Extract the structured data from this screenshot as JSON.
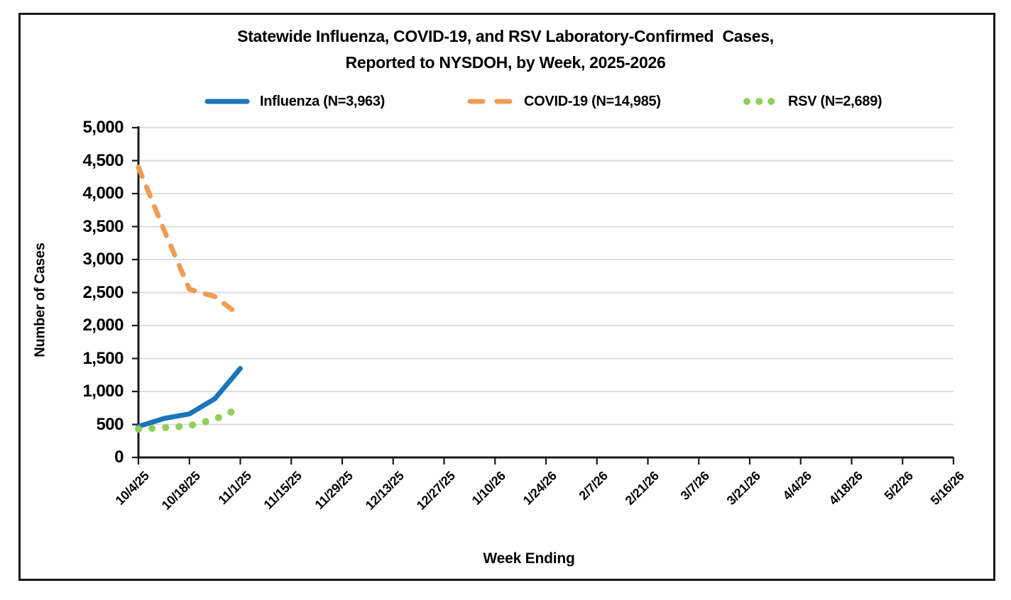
{
  "title": {
    "line1": "Statewide Influenza, COVID-19, and RSV Laboratory-Confirmed  Cases,",
    "line2": "Reported to NYSDOH, by Week, 2025-2026"
  },
  "legend": {
    "items": [
      {
        "label": "Influenza (N=3,963)",
        "series": "Influenza"
      },
      {
        "label": "COVID-19 (N=14,985)",
        "series": "COVID-19"
      },
      {
        "label": "RSV (N=2,689)",
        "series": "RSV"
      }
    ]
  },
  "colors": {
    "influenza_blue": "#1B75BB",
    "covid_orange": "#F09C52",
    "rsv_green": "#8FD05A",
    "gridline_gray": "#D9D9D9",
    "axis_black": "#1a1a1a"
  },
  "chart_data": {
    "type": "line",
    "title": "Statewide Influenza, COVID-19, and RSV Laboratory-Confirmed Cases, Reported to NYSDOH, by Week, 2025-2026",
    "xlabel": "Week Ending",
    "ylabel": "Number of Cases",
    "ylim": [
      0,
      5000
    ],
    "ytick_interval": 500,
    "y_tick_labels": [
      "0",
      "500",
      "1,000",
      "1,500",
      "2,000",
      "2,500",
      "3,000",
      "3,500",
      "4,000",
      "4,500",
      "5,000"
    ],
    "x_tick_labels": [
      "10/4/25",
      "10/18/25",
      "11/1/25",
      "11/15/25",
      "11/29/25",
      "12/13/25",
      "12/27/25",
      "1/10/26",
      "1/24/26",
      "2/7/26",
      "2/21/26",
      "3/7/26",
      "3/21/26",
      "4/4/26",
      "4/18/26",
      "5/2/26",
      "5/16/26"
    ],
    "x_weeks_per_tick": 2,
    "x_total_week_slots": 33,
    "grid": "horizontal-only",
    "legend_position": "top",
    "reported_weeks": [
      "10/4/25",
      "10/11/25",
      "10/18/25",
      "10/25/25",
      "11/1/25"
    ],
    "series": [
      {
        "name": "Influenza",
        "n_total": "3,963",
        "line_style": "solid",
        "values": [
          470,
          590,
          660,
          890,
          1350
        ]
      },
      {
        "name": "COVID-19",
        "n_total": "14,985",
        "line_style": "dashed",
        "values": [
          4400,
          3450,
          2550,
          2440,
          2145
        ]
      },
      {
        "name": "RSV",
        "n_total": "2,689",
        "line_style": "dotted",
        "values": [
          430,
          450,
          480,
          580,
          750
        ]
      }
    ]
  }
}
